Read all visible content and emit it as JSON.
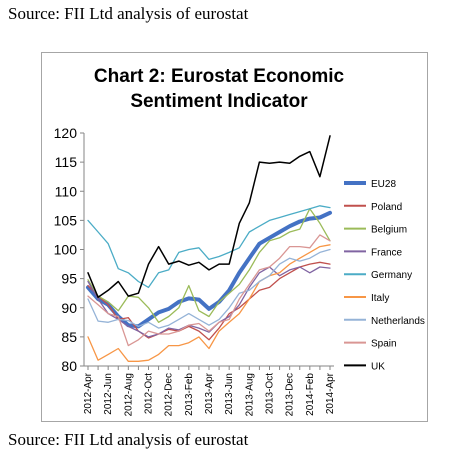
{
  "source_top": "Source: FII Ltd analysis of eurostat",
  "source_bottom": "Source: FII Ltd analysis of eurostat",
  "chart_data": {
    "type": "line",
    "title_lines": [
      "Chart 2: Eurostat Economic",
      "Sentiment Indicator"
    ],
    "xlabel": "",
    "ylabel": "",
    "ylim": [
      80,
      120
    ],
    "yticks": [
      80,
      85,
      90,
      95,
      100,
      105,
      110,
      115,
      120
    ],
    "grid": false,
    "legend_position": "right",
    "x": [
      "2012-Apr",
      "2012-May",
      "2012-Jun",
      "2012-Jul",
      "2012-Aug",
      "2012-Sep",
      "2012-Oct",
      "2012-Nov",
      "2012-Dec",
      "2013-Jan",
      "2013-Feb",
      "2013-Mar",
      "2013-Apr",
      "2013-May",
      "2013-Jun",
      "2013-Jul",
      "2013-Aug",
      "2013-Sep",
      "2013-Oct",
      "2013-Nov",
      "2013-Dec",
      "2014-Jan",
      "2014-Feb",
      "2014-Mar",
      "2014-Apr"
    ],
    "xtick_labels": [
      "2012-Apr",
      "2012-Jun",
      "2012-Aug",
      "2012-Oct",
      "2012-Dec",
      "2013-Feb",
      "2013-Apr",
      "2013-Jun",
      "2013-Aug",
      "2013-Oct",
      "2013-Dec",
      "2014-Feb",
      "2014-Apr"
    ],
    "series": [
      {
        "name": "EU28",
        "color": "#4472c4",
        "width": 4,
        "values": [
          93.5,
          91.5,
          90.5,
          88.5,
          87.0,
          86.8,
          88.0,
          89.2,
          89.8,
          91.0,
          91.6,
          91.4,
          89.8,
          91.0,
          93.0,
          96.0,
          98.5,
          101.0,
          102.0,
          103.0,
          104.0,
          104.8,
          105.3,
          105.5,
          106.3
        ]
      },
      {
        "name": "Poland",
        "color": "#c0504d",
        "width": 1.3,
        "values": [
          93.8,
          92.0,
          90.5,
          88.0,
          88.3,
          86.0,
          84.8,
          85.5,
          86.3,
          86.0,
          86.8,
          86.0,
          84.5,
          86.5,
          89.0,
          90.0,
          91.5,
          93.0,
          93.5,
          95.0,
          96.0,
          97.0,
          97.5,
          97.8,
          97.5
        ]
      },
      {
        "name": "Belgium",
        "color": "#9bbb59",
        "width": 1.3,
        "values": [
          94.8,
          92.0,
          91.0,
          89.5,
          92.0,
          91.8,
          90.0,
          87.5,
          88.5,
          90.0,
          93.8,
          89.5,
          88.5,
          91.0,
          92.5,
          94.0,
          96.5,
          99.5,
          101.5,
          102.0,
          103.0,
          103.5,
          107.0,
          104.5,
          101.5
        ]
      },
      {
        "name": "France",
        "color": "#8064a2",
        "width": 1.3,
        "values": [
          94.5,
          91.5,
          89.0,
          88.0,
          86.8,
          86.0,
          85.0,
          85.5,
          86.5,
          86.2,
          87.0,
          86.5,
          85.8,
          87.5,
          88.5,
          90.5,
          93.5,
          96.0,
          97.0,
          95.5,
          96.5,
          97.0,
          96.0,
          97.0,
          96.8
        ]
      },
      {
        "name": "Germany",
        "color": "#4bacc6",
        "width": 1.3,
        "values": [
          105.0,
          103.0,
          101.0,
          96.7,
          96.0,
          94.5,
          93.5,
          96.0,
          96.5,
          99.5,
          100.0,
          100.3,
          98.3,
          98.8,
          99.5,
          100.3,
          103.0,
          104.0,
          105.0,
          105.5,
          106.0,
          106.5,
          107.0,
          107.5,
          107.2
        ]
      },
      {
        "name": "Italy",
        "color": "#f79646",
        "width": 1.3,
        "values": [
          85.0,
          81.0,
          82.0,
          83.0,
          80.8,
          80.8,
          81.0,
          82.0,
          83.5,
          83.5,
          84.0,
          85.0,
          83.0,
          86.0,
          87.5,
          89.0,
          91.5,
          94.5,
          95.5,
          96.0,
          97.5,
          98.5,
          99.5,
          100.5,
          100.8
        ]
      },
      {
        "name": "Netherlands",
        "color": "#95b3d7",
        "width": 1.3,
        "values": [
          91.5,
          87.7,
          87.5,
          88.0,
          87.8,
          86.8,
          87.5,
          86.5,
          87.0,
          88.0,
          89.0,
          88.0,
          87.0,
          88.0,
          90.0,
          92.5,
          93.0,
          94.5,
          95.5,
          97.5,
          98.5,
          98.0,
          98.5,
          99.5,
          100.0
        ]
      },
      {
        "name": "Spain",
        "color": "#d99694",
        "width": 1.3,
        "values": [
          92.0,
          90.5,
          89.0,
          88.5,
          83.5,
          84.5,
          86.0,
          85.5,
          85.5,
          86.0,
          87.0,
          87.3,
          86.0,
          87.5,
          88.0,
          91.5,
          94.0,
          96.5,
          97.0,
          98.5,
          100.5,
          100.5,
          100.3,
          102.5,
          101.5
        ]
      },
      {
        "name": "UK",
        "color": "#000000",
        "width": 1.5,
        "values": [
          96.0,
          91.8,
          93.0,
          94.5,
          92.0,
          92.5,
          97.5,
          100.5,
          97.5,
          98.0,
          97.3,
          97.8,
          96.5,
          97.5,
          97.5,
          104.5,
          108.0,
          115.0,
          114.8,
          115.0,
          114.8,
          116.0,
          116.8,
          112.5,
          119.5
        ]
      }
    ]
  }
}
